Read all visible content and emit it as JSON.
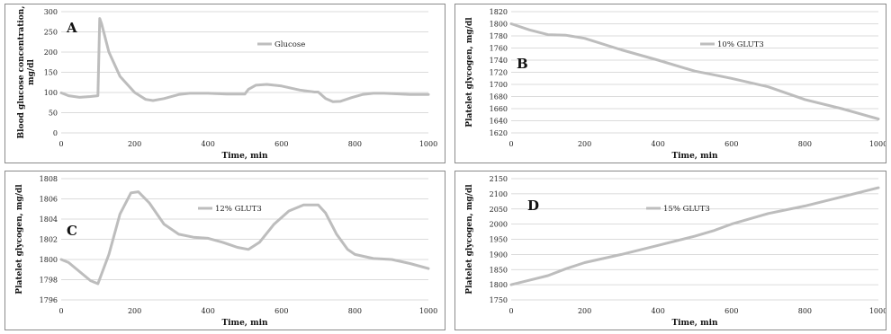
{
  "colors": {
    "series": "#bdbdbd",
    "grid": "#cfcfcf",
    "border": "#8a8a8a"
  },
  "chart_data": [
    {
      "type": "line",
      "panel_label": "A",
      "title": "",
      "xlabel": "Time, min",
      "ylabel": "Blood glucose concentration, mg/dl",
      "xlim": [
        0,
        1000
      ],
      "ylim": [
        0,
        300
      ],
      "xticks": [
        0,
        200,
        400,
        600,
        800,
        1000
      ],
      "yticks": [
        0,
        50,
        100,
        150,
        200,
        250,
        300
      ],
      "grid": true,
      "legend_position": "top-center",
      "series": [
        {
          "name": "Glucose",
          "x": [
            0,
            20,
            50,
            80,
            100,
            105,
            110,
            130,
            160,
            200,
            230,
            250,
            280,
            320,
            350,
            400,
            450,
            500,
            510,
            530,
            560,
            600,
            650,
            690,
            700,
            720,
            740,
            760,
            790,
            820,
            850,
            880,
            900,
            950,
            1000
          ],
          "y": [
            99,
            92,
            88,
            90,
            92,
            283,
            270,
            200,
            140,
            100,
            83,
            80,
            85,
            95,
            98,
            98,
            96,
            96,
            108,
            118,
            120,
            116,
            106,
            101,
            101,
            85,
            77,
            78,
            87,
            95,
            98,
            98,
            97,
            95,
            95
          ]
        }
      ]
    },
    {
      "type": "line",
      "panel_label": "B",
      "title": "",
      "xlabel": "Time, min",
      "ylabel": "Platelet glycogen, mg/dl",
      "xlim": [
        0,
        1000
      ],
      "ylim": [
        1620,
        1820
      ],
      "xticks": [
        0,
        200,
        400,
        600,
        800,
        1000
      ],
      "yticks": [
        1620,
        1640,
        1660,
        1680,
        1700,
        1720,
        1740,
        1760,
        1780,
        1800,
        1820
      ],
      "grid": true,
      "legend_position": "top-center",
      "series": [
        {
          "name": "10% GLUT3",
          "x": [
            0,
            50,
            100,
            150,
            200,
            300,
            400,
            500,
            550,
            600,
            700,
            800,
            900,
            1000
          ],
          "y": [
            1800,
            1790,
            1782,
            1781,
            1776,
            1757,
            1740,
            1722,
            1716,
            1710,
            1696,
            1675,
            1660,
            1643
          ]
        }
      ]
    },
    {
      "type": "line",
      "panel_label": "C",
      "title": "",
      "xlabel": "Time, min",
      "ylabel": "Platelet glycogen, mg/dl",
      "xlim": [
        0,
        1000
      ],
      "ylim": [
        1796,
        1808
      ],
      "xticks": [
        0,
        200,
        400,
        600,
        800,
        1000
      ],
      "yticks": [
        1796,
        1798,
        1800,
        1802,
        1804,
        1806,
        1808
      ],
      "grid": true,
      "legend_position": "top-center",
      "series": [
        {
          "name": "12% GLUT3",
          "x": [
            0,
            20,
            50,
            80,
            100,
            130,
            160,
            190,
            210,
            240,
            280,
            320,
            360,
            400,
            440,
            480,
            510,
            540,
            580,
            620,
            660,
            700,
            720,
            750,
            780,
            800,
            850,
            900,
            950,
            1000
          ],
          "y": [
            1800,
            1799.7,
            1798.8,
            1797.9,
            1797.6,
            1800.5,
            1804.5,
            1806.6,
            1806.7,
            1805.6,
            1803.5,
            1802.5,
            1802.2,
            1802.1,
            1801.7,
            1801.2,
            1801.0,
            1801.7,
            1803.5,
            1804.8,
            1805.4,
            1805.4,
            1804.6,
            1802.5,
            1801.0,
            1800.5,
            1800.1,
            1800.0,
            1799.6,
            1799.1
          ]
        }
      ]
    },
    {
      "type": "line",
      "panel_label": "D",
      "title": "",
      "xlabel": "Time, min",
      "ylabel": "Platelet glycogen, mg/dl",
      "xlim": [
        0,
        1000
      ],
      "ylim": [
        1750,
        2150
      ],
      "xticks": [
        0,
        200,
        400,
        600,
        800,
        1000
      ],
      "yticks": [
        1750,
        1800,
        1850,
        1900,
        1950,
        2000,
        2050,
        2100,
        2150
      ],
      "grid": true,
      "legend_position": "top-center",
      "series": [
        {
          "name": "15% GLUT3",
          "x": [
            0,
            50,
            100,
            150,
            200,
            300,
            400,
            500,
            550,
            600,
            700,
            800,
            900,
            1000
          ],
          "y": [
            1800,
            1815,
            1830,
            1853,
            1873,
            1900,
            1930,
            1960,
            1978,
            2000,
            2035,
            2060,
            2090,
            2120
          ]
        }
      ]
    }
  ]
}
